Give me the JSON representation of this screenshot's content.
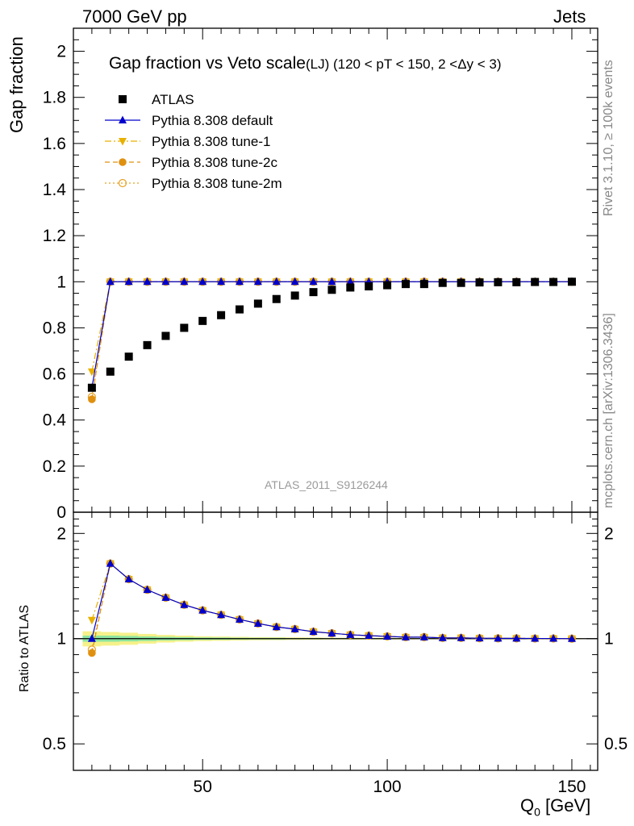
{
  "header": {
    "left": "7000 GeV pp",
    "right": "Jets"
  },
  "side": {
    "rivet": "Rivet 3.1.10, ≥ 100k events",
    "mcplots": "mcplots.cern.ch [arXiv:1306.3436]"
  },
  "chart_data": [
    {
      "type": "scatter",
      "title": "Gap fraction vs Veto scale",
      "subtitle": "(LJ) (120 < pT < 150, 2 <Δy < 3)",
      "ylabel": "Gap fraction",
      "xlim": [
        15,
        157
      ],
      "ylim": [
        0,
        2.1
      ],
      "yticks": [
        0,
        0.2,
        0.4,
        0.6,
        0.8,
        1,
        1.2,
        1.4,
        1.6,
        1.8,
        2
      ],
      "ytick_labels": [
        "0",
        "0.2",
        "0.4",
        "0.6",
        "0.8",
        "1",
        "1.2",
        "1.4",
        "1.6",
        "1.8",
        "2"
      ],
      "watermark": "ATLAS_2011_S9126244",
      "legend_position": "top-left",
      "x": [
        20,
        25,
        30,
        35,
        40,
        45,
        50,
        55,
        60,
        65,
        70,
        75,
        80,
        85,
        90,
        95,
        100,
        105,
        110,
        115,
        120,
        125,
        130,
        135,
        140,
        145,
        150
      ],
      "series": [
        {
          "name": "ATLAS",
          "color": "#000000",
          "marker": "square",
          "values": [
            0.54,
            0.61,
            0.675,
            0.725,
            0.765,
            0.8,
            0.83,
            0.855,
            0.88,
            0.905,
            0.925,
            0.94,
            0.955,
            0.965,
            0.975,
            0.98,
            0.985,
            0.99,
            0.99,
            0.995,
            0.995,
            0.997,
            0.998,
            0.998,
            0.999,
            0.999,
            1.0
          ]
        },
        {
          "name": "Pythia 8.308 default",
          "color": "#0000cc",
          "marker": "triangle-up",
          "line": "solid",
          "values": [
            0.54,
            1.0,
            1.0,
            1.0,
            1.0,
            1.0,
            1.0,
            1.0,
            1.0,
            1.0,
            1.0,
            1.0,
            1.0,
            1.0,
            1.0,
            1.0,
            1.0,
            1.0,
            1.0,
            1.0,
            1.0,
            1.0,
            1.0,
            1.0,
            1.0,
            1.0,
            1.0
          ]
        },
        {
          "name": "Pythia 8.308 tune-1",
          "color": "#e8b000",
          "marker": "triangle-down",
          "line": "dashdot",
          "values": [
            0.61,
            1.0,
            1.0,
            1.0,
            1.0,
            1.0,
            1.0,
            1.0,
            1.0,
            1.0,
            1.0,
            1.0,
            1.0,
            1.0,
            1.0,
            1.0,
            1.0,
            1.0,
            1.0,
            1.0,
            1.0,
            1.0,
            1.0,
            1.0,
            1.0,
            1.0,
            1.0
          ]
        },
        {
          "name": "Pythia 8.308 tune-2c",
          "color": "#e09010",
          "marker": "circle",
          "line": "dashed",
          "values": [
            0.49,
            1.0,
            1.0,
            1.0,
            1.0,
            1.0,
            1.0,
            1.0,
            1.0,
            1.0,
            1.0,
            1.0,
            1.0,
            1.0,
            1.0,
            1.0,
            1.0,
            1.0,
            1.0,
            1.0,
            1.0,
            1.0,
            1.0,
            1.0,
            1.0,
            1.0,
            1.0
          ]
        },
        {
          "name": "Pythia 8.308 tune-2m",
          "color": "#e8a020",
          "marker": "circle-open",
          "line": "dotted",
          "values": [
            0.5,
            1.0,
            1.0,
            1.0,
            1.0,
            1.0,
            1.0,
            1.0,
            1.0,
            1.0,
            1.0,
            1.0,
            1.0,
            1.0,
            1.0,
            1.0,
            1.0,
            1.0,
            1.0,
            1.0,
            1.0,
            1.0,
            1.0,
            1.0,
            1.0,
            1.0,
            1.0
          ]
        }
      ]
    },
    {
      "type": "scatter",
      "ylabel": "Ratio to ATLAS",
      "xlabel": "Q",
      "xlabel_sub": "0",
      "xlabel_unit": " [GeV]",
      "xlim": [
        15,
        157
      ],
      "ylim": [
        0.42,
        2.3
      ],
      "yscale": "log",
      "xticks": [
        50,
        100,
        150
      ],
      "xtick_labels": [
        "50",
        "100",
        "150"
      ],
      "yticks": [
        0.5,
        1,
        2
      ],
      "ytick_labels": [
        "0.5",
        "1",
        "2"
      ],
      "x": [
        20,
        25,
        30,
        35,
        40,
        45,
        50,
        55,
        60,
        65,
        70,
        75,
        80,
        85,
        90,
        95,
        100,
        105,
        110,
        115,
        120,
        125,
        130,
        135,
        140,
        145,
        150
      ],
      "band_inner": [
        0.02,
        0.02,
        0.018,
        0.015,
        0.012,
        0.01,
        0.008,
        0.007,
        0.006,
        0.005,
        0.005,
        0.004,
        0.004,
        0.003,
        0.003,
        0.003,
        0.003,
        0.002,
        0.002,
        0.002,
        0.002,
        0.002,
        0.002,
        0.002,
        0.002,
        0.002,
        0.002
      ],
      "band_outer": [
        0.05,
        0.045,
        0.04,
        0.032,
        0.025,
        0.02,
        0.016,
        0.014,
        0.012,
        0.01,
        0.009,
        0.008,
        0.007,
        0.006,
        0.006,
        0.005,
        0.005,
        0.005,
        0.004,
        0.004,
        0.004,
        0.004,
        0.004,
        0.004,
        0.004,
        0.004,
        0.004
      ],
      "series": [
        {
          "name": "Pythia 8.308 default",
          "color": "#0000cc",
          "marker": "triangle-up",
          "line": "solid",
          "values": [
            1.0,
            1.64,
            1.48,
            1.38,
            1.31,
            1.25,
            1.205,
            1.17,
            1.135,
            1.105,
            1.08,
            1.065,
            1.047,
            1.036,
            1.026,
            1.02,
            1.015,
            1.01,
            1.01,
            1.005,
            1.005,
            1.003,
            1.002,
            1.002,
            1.001,
            1.001,
            1.0
          ]
        },
        {
          "name": "Pythia 8.308 tune-1",
          "color": "#e8b000",
          "marker": "triangle-down",
          "line": "dashdot",
          "values": [
            1.13,
            1.64,
            1.48,
            1.38,
            1.31,
            1.25,
            1.205,
            1.17,
            1.135,
            1.105,
            1.08,
            1.065,
            1.047,
            1.036,
            1.026,
            1.02,
            1.015,
            1.01,
            1.01,
            1.005,
            1.005,
            1.003,
            1.002,
            1.002,
            1.001,
            1.001,
            1.0
          ]
        },
        {
          "name": "Pythia 8.308 tune-2c",
          "color": "#e09010",
          "marker": "circle",
          "line": "dashed",
          "values": [
            0.91,
            1.64,
            1.48,
            1.38,
            1.31,
            1.25,
            1.205,
            1.17,
            1.135,
            1.105,
            1.08,
            1.065,
            1.047,
            1.036,
            1.026,
            1.02,
            1.015,
            1.01,
            1.01,
            1.005,
            1.005,
            1.003,
            1.002,
            1.002,
            1.001,
            1.001,
            1.0
          ]
        },
        {
          "name": "Pythia 8.308 tune-2m",
          "color": "#e8a020",
          "marker": "circle-open",
          "line": "dotted",
          "values": [
            0.93,
            1.64,
            1.48,
            1.38,
            1.31,
            1.25,
            1.205,
            1.17,
            1.135,
            1.105,
            1.08,
            1.065,
            1.047,
            1.036,
            1.026,
            1.02,
            1.015,
            1.01,
            1.01,
            1.005,
            1.005,
            1.003,
            1.002,
            1.002,
            1.001,
            1.001,
            1.0
          ]
        }
      ]
    }
  ]
}
